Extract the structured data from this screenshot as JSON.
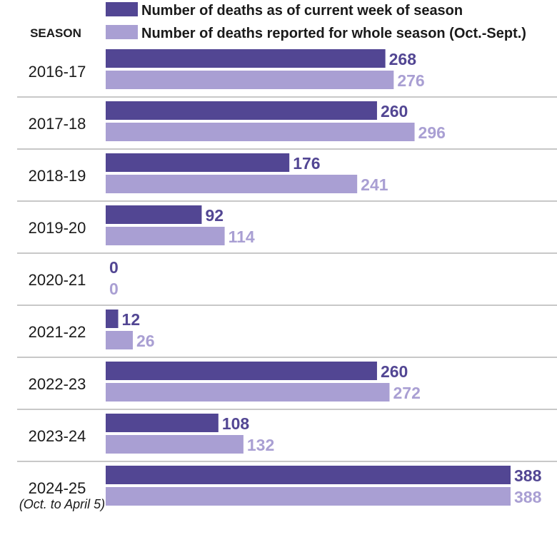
{
  "colors": {
    "current": "#524693",
    "whole": "#a99fd3",
    "separator": "#c8c8c8",
    "text": "#1a1a1a"
  },
  "legend": {
    "current": "Number of deaths as of current week of season",
    "whole": "Number of deaths reported for whole season (Oct.-Sept.)"
  },
  "header": {
    "season": "SEASON"
  },
  "note": "(Oct. to April 5)",
  "chart_data": {
    "type": "bar",
    "orientation": "horizontal",
    "categories": [
      "2016-17",
      "2017-18",
      "2018-19",
      "2019-20",
      "2020-21",
      "2021-22",
      "2022-23",
      "2023-24",
      "2024-25"
    ],
    "series": [
      {
        "name": "Number of deaths as of current week of season",
        "values": [
          268,
          260,
          176,
          92,
          0,
          12,
          260,
          108,
          388
        ]
      },
      {
        "name": "Number of deaths reported for whole season (Oct.-Sept.)",
        "values": [
          276,
          296,
          241,
          114,
          0,
          26,
          272,
          132,
          388
        ]
      }
    ],
    "xlim": [
      0,
      388
    ],
    "legend_position": "top",
    "grid": false
  }
}
